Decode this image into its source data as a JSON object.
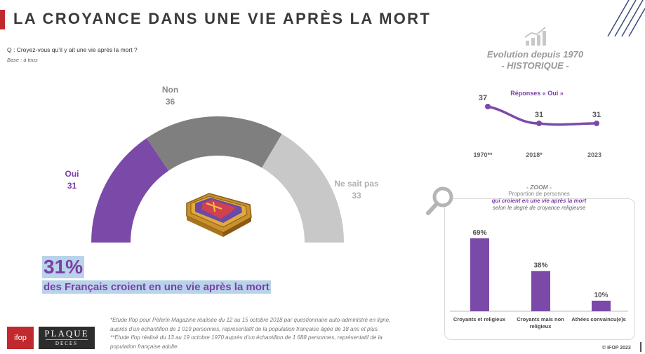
{
  "title": "LA CROYANCE DANS UNE VIE APRÈS LA MORT",
  "question": "Q : Croyez-vous qu’il y ait une vie après la mort ?",
  "base": "Base : à tous",
  "colors": {
    "oui": "#7b4aa8",
    "non": "#7f7f7f",
    "nsp": "#c8c8c8",
    "accent": "#7b3fa6",
    "brand_red": "#c0292e"
  },
  "main_chart": {
    "labels": {
      "oui": "Oui",
      "non": "Non",
      "nsp": "Ne sait pas"
    },
    "values": {
      "oui": "31",
      "non": "36",
      "nsp": "33"
    }
  },
  "headline": {
    "percent": "31%",
    "text": "des Français croient en une vie après la mort"
  },
  "evolution": {
    "title_line1": "Evolution depuis 1970",
    "title_line2": "- HISTORIQUE -",
    "subtitle": "Réponses « Oui »"
  },
  "zoom": {
    "title": "- ZOOM -",
    "line1": "Proportion de personnes",
    "line2": "qui croient en une vie après la mort",
    "line3": "selon le degré de croyance religieuse"
  },
  "chart_data": [
    {
      "type": "pie",
      "categories": [
        "Oui",
        "Non",
        "Ne sait pas"
      ],
      "values": [
        31,
        36,
        33
      ]
    },
    {
      "type": "line",
      "title": "Réponses « Oui »",
      "x": [
        "1970**",
        "2018*",
        "2023"
      ],
      "values": [
        37,
        31,
        31
      ]
    },
    {
      "type": "bar",
      "categories": [
        "Croyants et religieux",
        "Croyants mais non religieux",
        "Athées convaincu(e)s"
      ],
      "values": [
        69,
        38,
        10
      ],
      "value_labels": [
        "69%",
        "38%",
        "10%"
      ]
    }
  ],
  "footnote": {
    "line1": "*Etude Ifop pour Pèlerin Magazine réalisée du 12 au 15 octobre 2018 par questionnaire auto-administré en ligne,",
    "line2": "auprès d’un échantillon de 1 019 personnes, représentatif de la population française âgée de 18 ans et plus.",
    "line3": "**Etude Ifop réalisé du 13 au 19 octobre 1970 auprès d’un échantillon de 1 688 personnes, représentatif de la",
    "line4": "population française adulte."
  },
  "logos": {
    "ifop": "ifop",
    "plaque_line1": "PLAQUE",
    "plaque_line2": "DECES"
  },
  "copyright": "© IFOP 2023"
}
